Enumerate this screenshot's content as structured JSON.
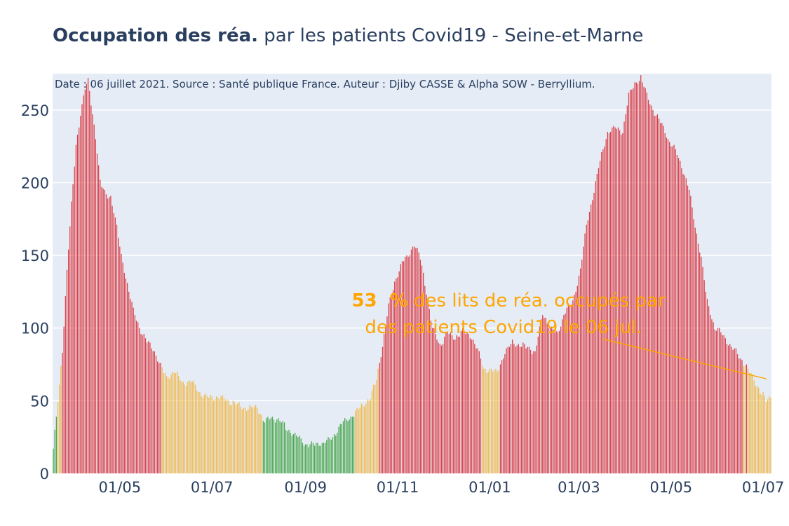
{
  "chart_data": {
    "type": "bar",
    "title_bold": "Occupation des réa.",
    "title_rest": " par les patients Covid19 - Seine-et-Marne",
    "source_note": "Date : 06 juillet 2021. Source : Santé publique France. Auteur : Djiby CASSE & Alpha SOW - Berryllium.",
    "annotation": {
      "value_text": "53  %",
      "line1_rest": " des lits de réa. occupés par",
      "line2": "des patients Covid19 le 06 jul.",
      "arrow_color": "#ffa500"
    },
    "x_start": "2020-03-18",
    "x_end": "2021-07-06",
    "ylim": [
      0,
      275
    ],
    "y_ticks": [
      0,
      50,
      100,
      150,
      200,
      250
    ],
    "x_ticks": [
      {
        "date": "2020-05-01",
        "label": "01/05"
      },
      {
        "date": "2020-07-01",
        "label": "01/07"
      },
      {
        "date": "2020-09-01",
        "label": "01/09"
      },
      {
        "date": "2020-11-01",
        "label": "01/11"
      },
      {
        "date": "2021-01-01",
        "label": "01/01"
      },
      {
        "date": "2021-03-01",
        "label": "01/03"
      },
      {
        "date": "2021-05-01",
        "label": "01/05"
      },
      {
        "date": "2021-07-01",
        "label": "01/07"
      }
    ],
    "colors": {
      "red": "#d9232b",
      "orange": "#f2b233",
      "green": "#2e9b2e",
      "plot_bg": "#e5ecf6",
      "grid": "#ffffff"
    },
    "thresholds": {
      "green_below": 40,
      "orange_below": 75
    },
    "grid": true,
    "legend": "none",
    "series": [
      {
        "comment": "Daily ICU occupancy, anchor values (date, patients) read from the chart; intermediate days are interpolated",
        "anchors": [
          [
            "2020-03-18",
            17
          ],
          [
            "2020-03-20",
            38
          ],
          [
            "2020-03-22",
            60
          ],
          [
            "2020-03-24",
            85
          ],
          [
            "2020-03-27",
            140
          ],
          [
            "2020-03-30",
            185
          ],
          [
            "2020-04-02",
            225
          ],
          [
            "2020-04-05",
            248
          ],
          [
            "2020-04-08",
            265
          ],
          [
            "2020-04-10",
            270
          ],
          [
            "2020-04-12",
            255
          ],
          [
            "2020-04-15",
            232
          ],
          [
            "2020-04-18",
            200
          ],
          [
            "2020-04-21",
            193
          ],
          [
            "2020-04-25",
            190
          ],
          [
            "2020-04-28",
            175
          ],
          [
            "2020-05-02",
            150
          ],
          [
            "2020-05-06",
            130
          ],
          [
            "2020-05-10",
            112
          ],
          [
            "2020-05-14",
            100
          ],
          [
            "2020-05-18",
            92
          ],
          [
            "2020-05-23",
            86
          ],
          [
            "2020-05-27",
            76
          ],
          [
            "2020-06-01",
            66
          ],
          [
            "2020-06-06",
            70
          ],
          [
            "2020-06-12",
            62
          ],
          [
            "2020-06-18",
            63
          ],
          [
            "2020-06-23",
            55
          ],
          [
            "2020-06-29",
            52
          ],
          [
            "2020-07-08",
            52
          ],
          [
            "2020-07-16",
            48
          ],
          [
            "2020-07-23",
            45
          ],
          [
            "2020-07-31",
            45
          ],
          [
            "2020-08-05",
            36
          ],
          [
            "2020-08-10",
            38
          ],
          [
            "2020-08-15",
            37
          ],
          [
            "2020-08-20",
            30
          ],
          [
            "2020-08-26",
            26
          ],
          [
            "2020-09-01",
            20
          ],
          [
            "2020-09-07",
            20
          ],
          [
            "2020-09-13",
            21
          ],
          [
            "2020-09-19",
            25
          ],
          [
            "2020-09-25",
            35
          ],
          [
            "2020-09-30",
            38
          ],
          [
            "2020-10-04",
            42
          ],
          [
            "2020-10-09",
            47
          ],
          [
            "2020-10-14",
            52
          ],
          [
            "2020-10-18",
            65
          ],
          [
            "2020-10-22",
            88
          ],
          [
            "2020-10-26",
            115
          ],
          [
            "2020-10-30",
            132
          ],
          [
            "2020-11-04",
            145
          ],
          [
            "2020-11-08",
            150
          ],
          [
            "2020-11-12",
            158
          ],
          [
            "2020-11-16",
            148
          ],
          [
            "2020-11-20",
            125
          ],
          [
            "2020-11-24",
            100
          ],
          [
            "2020-11-29",
            88
          ],
          [
            "2020-12-04",
            97
          ],
          [
            "2020-12-09",
            93
          ],
          [
            "2020-12-14",
            98
          ],
          [
            "2020-12-19",
            95
          ],
          [
            "2020-12-24",
            85
          ],
          [
            "2020-12-28",
            72
          ],
          [
            "2021-01-06",
            70
          ],
          [
            "2021-01-11",
            83
          ],
          [
            "2021-01-16",
            90
          ],
          [
            "2021-01-21",
            88
          ],
          [
            "2021-01-26",
            87
          ],
          [
            "2021-01-31",
            83
          ],
          [
            "2021-02-05",
            110
          ],
          [
            "2021-02-10",
            100
          ],
          [
            "2021-02-15",
            96
          ],
          [
            "2021-02-20",
            112
          ],
          [
            "2021-02-25",
            118
          ],
          [
            "2021-03-02",
            140
          ],
          [
            "2021-03-06",
            170
          ],
          [
            "2021-03-10",
            190
          ],
          [
            "2021-03-15",
            215
          ],
          [
            "2021-03-20",
            235
          ],
          [
            "2021-03-25",
            238
          ],
          [
            "2021-03-30",
            235
          ],
          [
            "2021-04-03",
            260
          ],
          [
            "2021-04-07",
            268
          ],
          [
            "2021-04-11",
            272
          ],
          [
            "2021-04-15",
            260
          ],
          [
            "2021-04-20",
            248
          ],
          [
            "2021-04-25",
            240
          ],
          [
            "2021-04-30",
            228
          ],
          [
            "2021-05-05",
            220
          ],
          [
            "2021-05-09",
            208
          ],
          [
            "2021-05-13",
            195
          ],
          [
            "2021-05-17",
            170
          ],
          [
            "2021-05-21",
            148
          ],
          [
            "2021-05-25",
            118
          ],
          [
            "2021-05-30",
            100
          ],
          [
            "2021-06-04",
            96
          ],
          [
            "2021-06-09",
            88
          ],
          [
            "2021-06-14",
            82
          ],
          [
            "2021-06-19",
            75
          ],
          [
            "2021-06-24",
            66
          ],
          [
            "2021-06-29",
            57
          ],
          [
            "2021-07-03",
            50
          ],
          [
            "2021-07-06",
            53
          ]
        ]
      }
    ]
  }
}
